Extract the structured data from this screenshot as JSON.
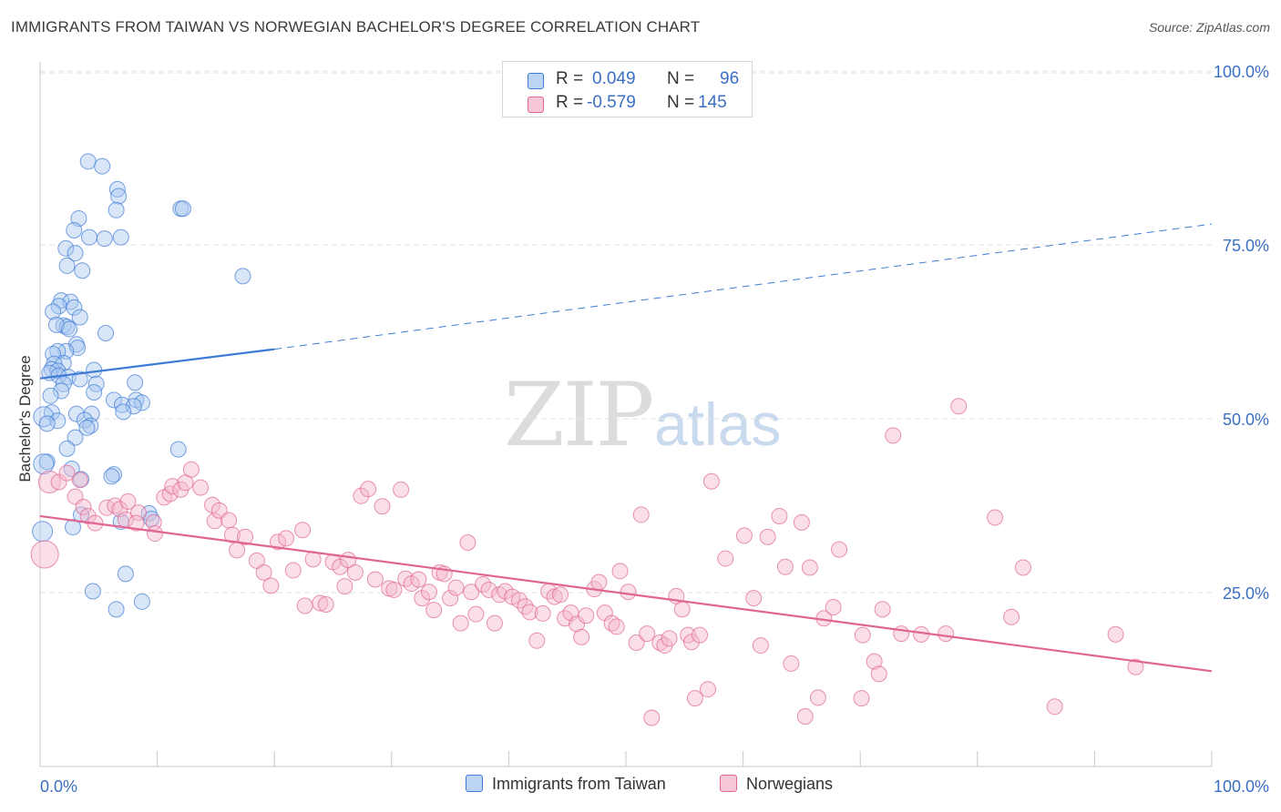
{
  "title": "IMMIGRANTS FROM TAIWAN VS NORWEGIAN BACHELOR'S DEGREE CORRELATION CHART",
  "source": "Source: ZipAtlas.com",
  "watermark": {
    "zip": "ZIP",
    "atlas": "atlas"
  },
  "legend": {
    "series1": {
      "r_label": "R =",
      "r_value": "0.049",
      "n_label": "N =",
      "n_value": "96"
    },
    "series2": {
      "r_label": "R =",
      "r_value": "-0.579",
      "n_label": "N =",
      "n_value": "145"
    }
  },
  "bottom_legend": {
    "series1": "Immigrants from Taiwan",
    "series2": "Norwegians"
  },
  "colors": {
    "blue": "#3f7bd6",
    "blue_fill": "#a9c8ef",
    "pink": "#e06592",
    "pink_fill": "#f4b7cb",
    "grid": "#e3e3e3",
    "tick_text": "#3a6fc4"
  },
  "chart_data": {
    "type": "scatter",
    "title": "IMMIGRANTS FROM TAIWAN VS NORWEGIAN BACHELOR'S DEGREE CORRELATION CHART",
    "xlabel": "",
    "ylabel": "Bachelor's Degree",
    "xlim": [
      0,
      100
    ],
    "ylim": [
      0,
      105
    ],
    "x_tick_labels": [
      "0.0%",
      "100.0%"
    ],
    "y_ticks": [
      25,
      50,
      75,
      100
    ],
    "y_tick_labels": [
      "25.0%",
      "50.0%",
      "75.0%",
      "100.0%"
    ],
    "grid": true,
    "series": [
      {
        "name": "Immigrants from Taiwan",
        "color": "#3f7bd6",
        "trend": {
          "x0": 0,
          "y0": 55.8,
          "x1": 20,
          "y1": 60.0,
          "dashed_to_x": 100,
          "dashed_to_y": 78.0
        },
        "points": [
          [
            4.1,
            87.0
          ],
          [
            5.3,
            86.3
          ],
          [
            6.6,
            83.0
          ],
          [
            6.7,
            82.0
          ],
          [
            6.5,
            80.0
          ],
          [
            12.0,
            80.2
          ],
          [
            12.2,
            80.2
          ],
          [
            3.3,
            78.8
          ],
          [
            2.9,
            77.1
          ],
          [
            4.2,
            76.1
          ],
          [
            5.5,
            75.9
          ],
          [
            6.9,
            76.1
          ],
          [
            2.2,
            74.5
          ],
          [
            3.0,
            73.8
          ],
          [
            2.3,
            72.0
          ],
          [
            3.6,
            71.3
          ],
          [
            17.3,
            70.5
          ],
          [
            1.8,
            67.0
          ],
          [
            2.6,
            66.8
          ],
          [
            1.6,
            66.2
          ],
          [
            2.9,
            66.0
          ],
          [
            1.1,
            65.4
          ],
          [
            3.4,
            64.6
          ],
          [
            2.0,
            63.4
          ],
          [
            2.3,
            63.2
          ],
          [
            1.4,
            63.5
          ],
          [
            2.5,
            62.9
          ],
          [
            5.6,
            62.3
          ],
          [
            3.1,
            60.7
          ],
          [
            3.2,
            60.2
          ],
          [
            2.2,
            59.7
          ],
          [
            1.5,
            59.7
          ],
          [
            1.1,
            59.3
          ],
          [
            2.0,
            58.0
          ],
          [
            1.2,
            57.9
          ],
          [
            1.0,
            57.1
          ],
          [
            1.5,
            56.9
          ],
          [
            0.8,
            56.6
          ],
          [
            1.6,
            56.2
          ],
          [
            2.4,
            56.0
          ],
          [
            3.4,
            55.7
          ],
          [
            4.6,
            57.0
          ],
          [
            8.1,
            55.2
          ],
          [
            2.0,
            55.0
          ],
          [
            4.8,
            55.0
          ],
          [
            1.8,
            54.0
          ],
          [
            4.6,
            53.8
          ],
          [
            0.9,
            53.3
          ],
          [
            6.3,
            52.7
          ],
          [
            8.2,
            52.7
          ],
          [
            8.7,
            52.3
          ],
          [
            7.0,
            52.0
          ],
          [
            8.0,
            51.8
          ],
          [
            7.1,
            51.0
          ],
          [
            1.0,
            50.9
          ],
          [
            3.1,
            50.7
          ],
          [
            4.4,
            50.7
          ],
          [
            0.3,
            50.3
          ],
          [
            3.8,
            49.8
          ],
          [
            1.5,
            49.7
          ],
          [
            0.6,
            49.3
          ],
          [
            4.3,
            49.0
          ],
          [
            4.0,
            48.7
          ],
          [
            3.0,
            47.3
          ],
          [
            2.3,
            45.7
          ],
          [
            11.8,
            45.6
          ],
          [
            0.6,
            43.8
          ],
          [
            0.3,
            43.5
          ],
          [
            2.7,
            42.8
          ],
          [
            6.3,
            42.0
          ],
          [
            6.1,
            41.7
          ],
          [
            3.5,
            41.3
          ],
          [
            9.3,
            36.4
          ],
          [
            3.5,
            36.2
          ],
          [
            6.9,
            35.2
          ],
          [
            2.8,
            34.4
          ],
          [
            9.5,
            35.6
          ],
          [
            0.2,
            33.8
          ],
          [
            7.3,
            27.7
          ],
          [
            4.5,
            25.2
          ],
          [
            8.7,
            23.7
          ],
          [
            6.5,
            22.6
          ]
        ]
      },
      {
        "name": "Norwegians",
        "color": "#e06592",
        "trend": {
          "x0": 0,
          "y0": 36.0,
          "x1": 100,
          "y1": 13.7
        },
        "points": [
          [
            0.4,
            30.5
          ],
          [
            0.8,
            40.9
          ],
          [
            1.6,
            40.9
          ],
          [
            2.3,
            42.2
          ],
          [
            3.4,
            41.2
          ],
          [
            3.0,
            38.8
          ],
          [
            3.7,
            37.3
          ],
          [
            4.1,
            36.0
          ],
          [
            4.7,
            35.0
          ],
          [
            5.7,
            37.2
          ],
          [
            6.4,
            37.5
          ],
          [
            6.8,
            37.0
          ],
          [
            7.3,
            35.5
          ],
          [
            7.5,
            38.1
          ],
          [
            8.4,
            36.5
          ],
          [
            8.2,
            35.0
          ],
          [
            9.7,
            35.1
          ],
          [
            9.8,
            33.5
          ],
          [
            10.6,
            38.7
          ],
          [
            11.1,
            39.2
          ],
          [
            11.3,
            40.3
          ],
          [
            12.0,
            39.8
          ],
          [
            12.4,
            40.8
          ],
          [
            12.9,
            42.7
          ],
          [
            13.7,
            40.1
          ],
          [
            14.7,
            37.6
          ],
          [
            14.9,
            35.3
          ],
          [
            15.3,
            36.8
          ],
          [
            16.1,
            35.4
          ],
          [
            16.4,
            33.3
          ],
          [
            16.8,
            31.1
          ],
          [
            17.5,
            33.0
          ],
          [
            18.5,
            29.6
          ],
          [
            19.1,
            27.9
          ],
          [
            19.7,
            26.0
          ],
          [
            20.3,
            32.3
          ],
          [
            21.0,
            32.8
          ],
          [
            21.6,
            28.2
          ],
          [
            22.4,
            34.0
          ],
          [
            22.6,
            23.1
          ],
          [
            23.3,
            29.8
          ],
          [
            23.9,
            23.5
          ],
          [
            24.4,
            23.3
          ],
          [
            25.0,
            29.4
          ],
          [
            25.6,
            28.7
          ],
          [
            26.0,
            25.9
          ],
          [
            26.3,
            29.7
          ],
          [
            26.9,
            27.9
          ],
          [
            27.4,
            38.9
          ],
          [
            28.0,
            39.9
          ],
          [
            28.6,
            26.9
          ],
          [
            29.2,
            37.4
          ],
          [
            29.8,
            25.6
          ],
          [
            30.2,
            25.4
          ],
          [
            30.8,
            39.8
          ],
          [
            31.2,
            27.0
          ],
          [
            31.7,
            26.3
          ],
          [
            32.3,
            26.9
          ],
          [
            32.6,
            24.2
          ],
          [
            33.2,
            25.1
          ],
          [
            33.6,
            22.5
          ],
          [
            34.1,
            27.9
          ],
          [
            34.5,
            27.7
          ],
          [
            35.0,
            24.2
          ],
          [
            35.5,
            25.7
          ],
          [
            35.9,
            20.6
          ],
          [
            36.5,
            32.2
          ],
          [
            36.8,
            25.1
          ],
          [
            37.2,
            21.9
          ],
          [
            37.8,
            26.2
          ],
          [
            38.3,
            25.4
          ],
          [
            38.8,
            20.6
          ],
          [
            39.2,
            24.7
          ],
          [
            39.7,
            25.2
          ],
          [
            40.3,
            24.4
          ],
          [
            40.9,
            23.9
          ],
          [
            41.4,
            23.0
          ],
          [
            41.8,
            22.2
          ],
          [
            42.4,
            18.1
          ],
          [
            42.9,
            22.0
          ],
          [
            43.4,
            25.2
          ],
          [
            43.9,
            24.4
          ],
          [
            44.4,
            24.7
          ],
          [
            44.8,
            21.3
          ],
          [
            45.3,
            22.1
          ],
          [
            45.8,
            20.5
          ],
          [
            46.2,
            18.6
          ],
          [
            46.6,
            21.7
          ],
          [
            47.3,
            25.5
          ],
          [
            47.7,
            26.5
          ],
          [
            48.2,
            22.1
          ],
          [
            48.8,
            20.6
          ],
          [
            49.2,
            20.1
          ],
          [
            49.5,
            28.1
          ],
          [
            50.2,
            25.1
          ],
          [
            50.9,
            17.8
          ],
          [
            51.3,
            36.2
          ],
          [
            51.8,
            19.1
          ],
          [
            52.2,
            7.0
          ],
          [
            52.9,
            17.8
          ],
          [
            53.3,
            17.4
          ],
          [
            53.7,
            18.4
          ],
          [
            54.3,
            24.5
          ],
          [
            54.8,
            22.6
          ],
          [
            55.3,
            18.9
          ],
          [
            55.6,
            17.9
          ],
          [
            55.9,
            9.8
          ],
          [
            56.3,
            18.9
          ],
          [
            57.0,
            11.1
          ],
          [
            57.3,
            41.0
          ],
          [
            58.5,
            29.9
          ],
          [
            60.1,
            33.2
          ],
          [
            60.9,
            24.2
          ],
          [
            61.5,
            17.4
          ],
          [
            62.1,
            33.0
          ],
          [
            63.1,
            36.0
          ],
          [
            63.6,
            28.7
          ],
          [
            64.1,
            14.8
          ],
          [
            65.0,
            35.1
          ],
          [
            65.3,
            7.2
          ],
          [
            65.7,
            28.6
          ],
          [
            66.4,
            9.9
          ],
          [
            66.9,
            21.3
          ],
          [
            67.7,
            22.9
          ],
          [
            68.2,
            31.2
          ],
          [
            70.1,
            9.8
          ],
          [
            70.2,
            18.9
          ],
          [
            71.2,
            15.1
          ],
          [
            71.6,
            13.3
          ],
          [
            71.9,
            22.6
          ],
          [
            72.8,
            47.6
          ],
          [
            73.5,
            19.1
          ],
          [
            75.2,
            19.0
          ],
          [
            77.3,
            19.1
          ],
          [
            78.4,
            51.8
          ],
          [
            81.5,
            35.8
          ],
          [
            82.9,
            21.5
          ],
          [
            83.9,
            28.6
          ],
          [
            86.6,
            8.6
          ],
          [
            91.8,
            19.0
          ],
          [
            93.5,
            14.3
          ]
        ]
      }
    ]
  }
}
